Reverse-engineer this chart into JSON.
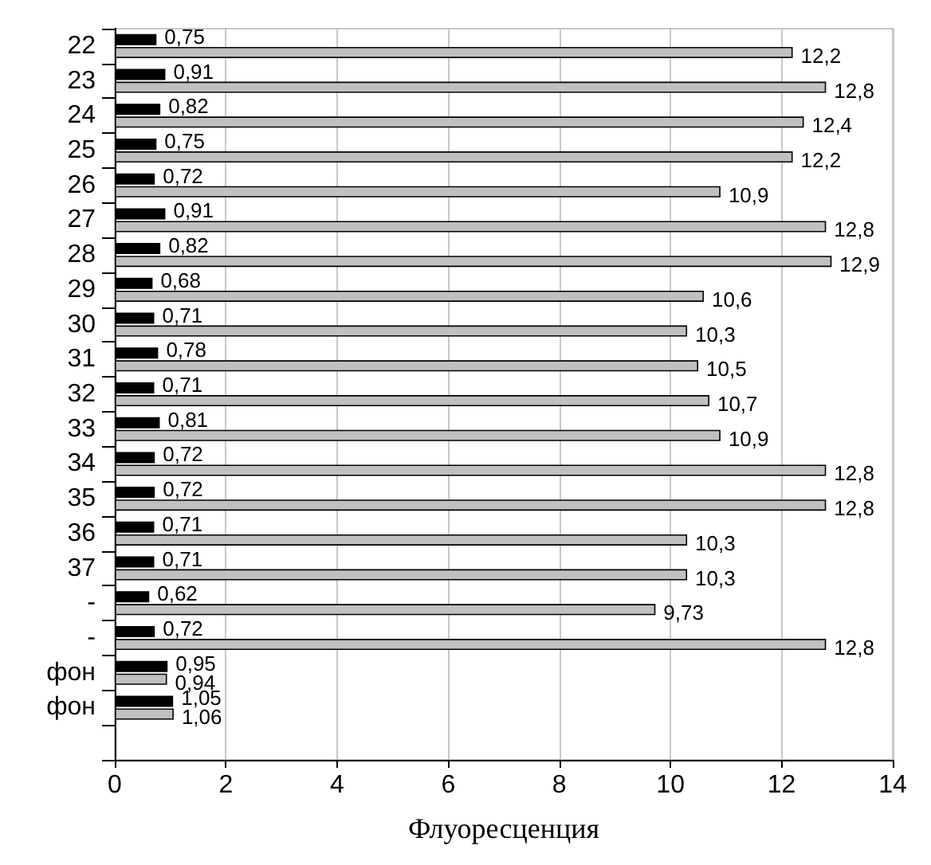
{
  "chart_data": {
    "type": "bar",
    "orientation": "horizontal",
    "xlabel": "Флуоресценция",
    "categories": [
      "22",
      "23",
      "24",
      "25",
      "26",
      "27",
      "28",
      "29",
      "30",
      "31",
      "32",
      "33",
      "34",
      "35",
      "36",
      "37",
      "-",
      "-",
      "фон",
      "фон",
      null
    ],
    "series": [
      {
        "color": "#000000",
        "values": [
          0.75,
          0.91,
          0.82,
          0.75,
          0.72,
          0.91,
          0.82,
          0.68,
          0.71,
          0.78,
          0.71,
          0.81,
          0.72,
          0.72,
          0.71,
          0.71,
          0.62,
          0.72,
          0.95,
          1.05,
          null
        ],
        "value_labels": [
          "0,75",
          "0,91",
          "0,82",
          "0,75",
          "0,72",
          "0,91",
          "0,82",
          "0,68",
          "0,71",
          "0,78",
          "0,71",
          "0,81",
          "0,72",
          "0,72",
          "0,71",
          "0,71",
          "0,62",
          "0,72",
          "0,95",
          "1,05",
          null
        ]
      },
      {
        "color": "#c0c0c0",
        "values": [
          12.2,
          12.8,
          12.4,
          12.2,
          10.9,
          12.8,
          12.9,
          10.6,
          10.3,
          10.5,
          10.7,
          10.9,
          12.8,
          12.8,
          10.3,
          10.3,
          9.73,
          12.8,
          0.94,
          1.06,
          null
        ],
        "value_labels": [
          "12,2",
          "12,8",
          "12,4",
          "12,2",
          "10,9",
          "12,8",
          "12,9",
          "10,6",
          "10,3",
          "10,5",
          "10,7",
          "10,9",
          "12,8",
          "12,8",
          "10,3",
          "10,3",
          "9,73",
          "12,8",
          "0,94",
          "1,06",
          null
        ]
      }
    ],
    "xlim": [
      0,
      14
    ],
    "xticks": [
      0,
      2,
      4,
      6,
      8,
      10,
      12,
      14
    ],
    "grid": "x"
  }
}
